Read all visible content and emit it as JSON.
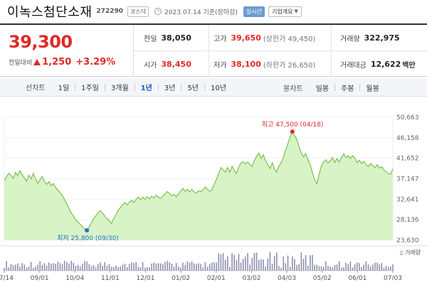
{
  "header": {
    "stock_name": "이녹스첨단소재",
    "stock_code": "272290",
    "market_badge": "코스닥",
    "as_of": "2023.07.14 기준(장마감)",
    "realtime_label": "실시간",
    "company_label": "기업개요",
    "icons": [
      "clock-icon",
      "chevron-down-icon"
    ]
  },
  "price": {
    "current": "39,300",
    "change_label": "전일대비",
    "change_value": "1,250",
    "change_pct": "+3.29%",
    "color": "#e12828"
  },
  "stats": {
    "prev_close_label": "전일",
    "prev_close": "38,050",
    "high_label": "고가",
    "high": "39,650",
    "upper_limit": "(상한가 49,450)",
    "volume_label": "거래량",
    "volume": "322,975",
    "open_label": "시가",
    "open": "38,450",
    "low_label": "저가",
    "low": "38,100",
    "lower_limit": "(하한가 26,650)",
    "amount_label": "거래대금",
    "amount": "12,622",
    "amount_unit": "백만"
  },
  "toolbar": {
    "line_label": "선차트",
    "periods": [
      "1일",
      "1주일",
      "3개월",
      "1년",
      "3년",
      "5년",
      "10년"
    ],
    "active_period": "1년",
    "candle_label": "봉차트",
    "candles": [
      "일봉",
      "주봉",
      "월봉"
    ]
  },
  "chart_data": {
    "type": "area",
    "ylim": [
      23630,
      50663
    ],
    "y_ticks": [
      "50,663",
      "46,158",
      "41,652",
      "37,147",
      "32,641",
      "28,136",
      "23,630"
    ],
    "x_ticks": [
      "07/14",
      "09/01",
      "10/04",
      "11/01",
      "12/01",
      "01/02",
      "02/01",
      "03/02",
      "04/03",
      "05/02",
      "06/01",
      "07/03"
    ],
    "high_label": "최고 47,500 (04/18)",
    "low_label": "최저 25,800 (09/30)",
    "volume_label": "거래량",
    "fill_color": "#d8f3c6",
    "line_color": "#7cc050",
    "marker_high_color": "#e12828",
    "marker_low_color": "#2a6fd0",
    "values": [
      36800,
      37600,
      38300,
      37900,
      37200,
      38500,
      37800,
      38900,
      38100,
      37300,
      36600,
      37900,
      37100,
      38300,
      37200,
      36100,
      36900,
      37600,
      36500,
      35900,
      36500,
      35600,
      36100,
      35200,
      34600,
      34100,
      33400,
      32600,
      31600,
      30600,
      29600,
      28900,
      28100,
      27600,
      27100,
      26600,
      26100,
      25800,
      26500,
      27400,
      28300,
      29000,
      29600,
      30100,
      29600,
      28900,
      28400,
      27900,
      27300,
      28400,
      29200,
      30200,
      30800,
      31400,
      31900,
      31400,
      31900,
      32400,
      31900,
      32600,
      33100,
      32500,
      33100,
      32600,
      33200,
      32700,
      33300,
      32900,
      33500,
      33100,
      32800,
      33300,
      33800,
      34300,
      33900,
      33400,
      33700,
      33200,
      33800,
      34400,
      35000,
      34400,
      34800,
      34200,
      34800,
      34200,
      34000,
      34500,
      34300,
      34700,
      35300,
      34800,
      34300,
      34800,
      35900,
      37000,
      38200,
      39600,
      39100,
      38600,
      39600,
      38600,
      39900,
      38900,
      38300,
      39800,
      40600,
      40900,
      40400,
      40800,
      40300,
      39800,
      41100,
      42100,
      42800,
      41600,
      42400,
      41100,
      40300,
      39400,
      40600,
      39300,
      38600,
      39900,
      40700,
      41900,
      43400,
      44900,
      46300,
      47500,
      46600,
      45800,
      44200,
      42800,
      41900,
      42700,
      41300,
      40200,
      38500,
      36900,
      36000,
      38100,
      39900,
      40800,
      41300,
      40600,
      41100,
      41800,
      40700,
      41600,
      40800,
      41800,
      42600,
      41800,
      42200,
      41600,
      42200,
      41700,
      40700,
      41200,
      40500,
      41000,
      40200,
      39800,
      40500,
      40000,
      39600,
      40200,
      39500,
      39800,
      39100,
      38600,
      38300,
      38100,
      39300
    ]
  }
}
